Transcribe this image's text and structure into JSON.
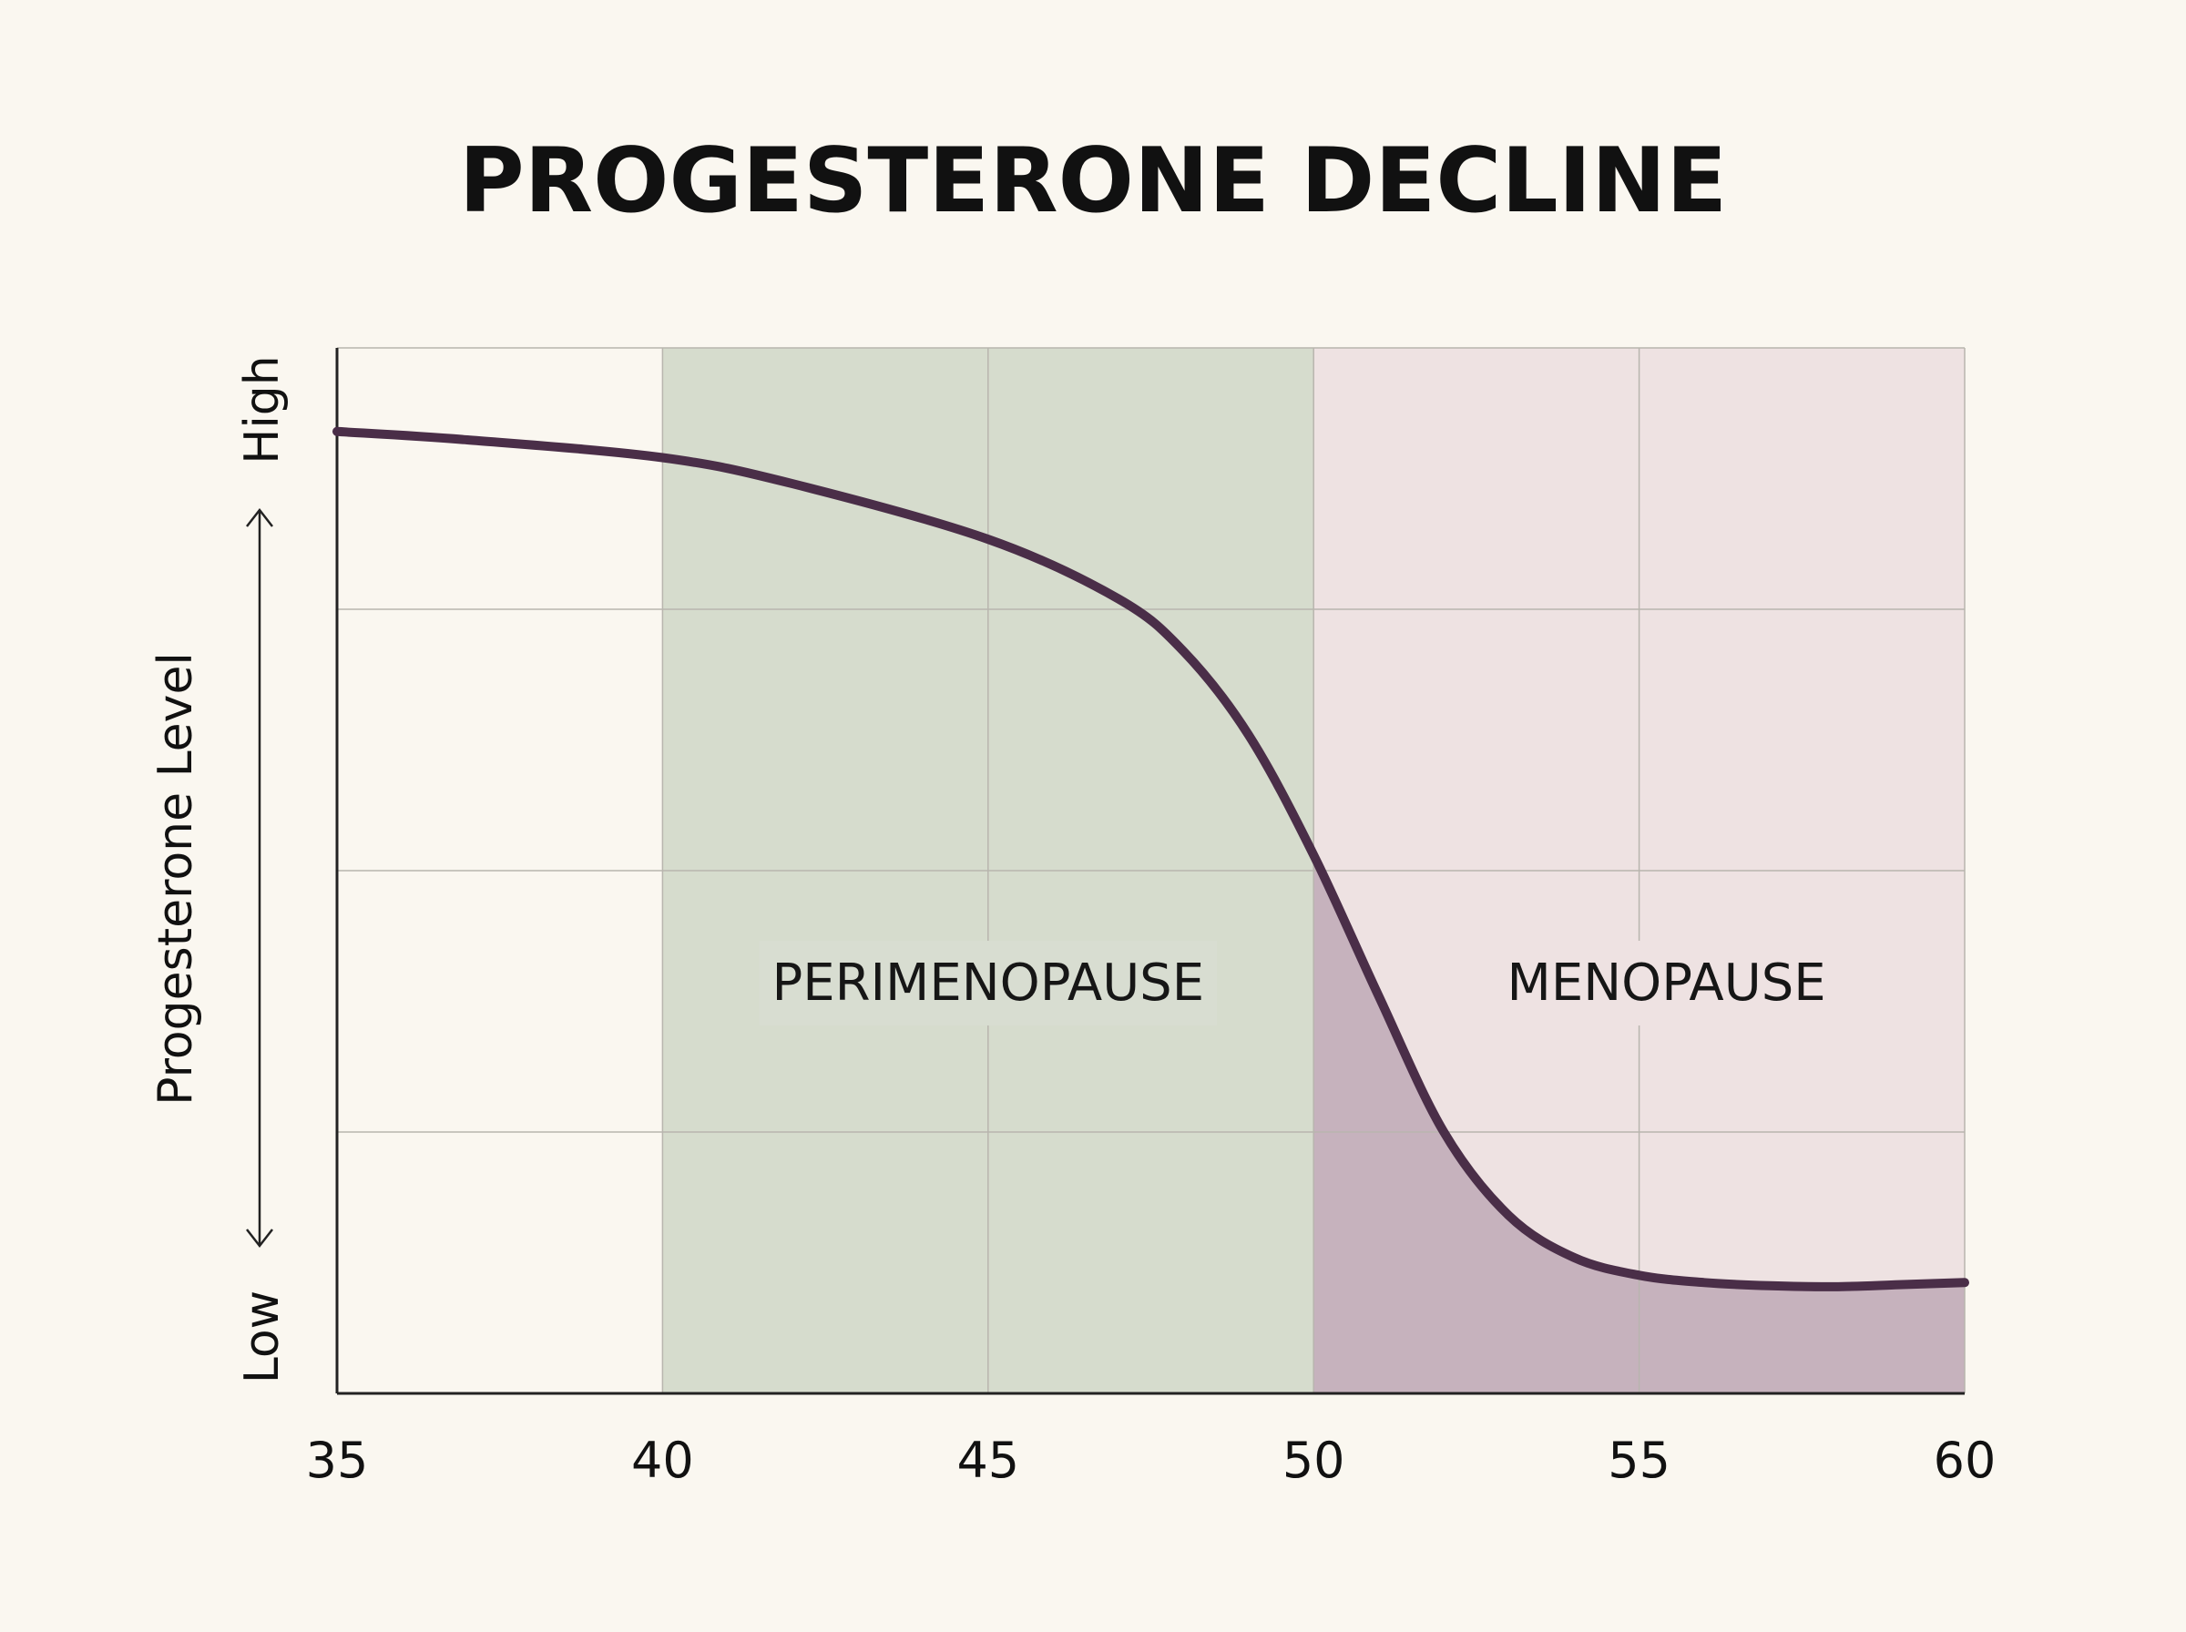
{
  "chart_data": {
    "type": "area",
    "title": "PROGESTERONE DECLINE",
    "xlabel": "",
    "ylabel": "Progesterone Level",
    "y_end_labels": {
      "high": "High",
      "low": "Low"
    },
    "x_ticks": [
      35,
      40,
      45,
      50,
      55,
      60
    ],
    "xlim": [
      35,
      60
    ],
    "ylim": [
      0,
      100
    ],
    "grid": true,
    "y_tick_labels_shown": false,
    "regions": [
      {
        "label": "PERIMENOPAUSE",
        "x_start": 40,
        "x_end": 50,
        "color": "#d6dccd",
        "under_curve_color": "#d6dccd"
      },
      {
        "label": "MENOPAUSE",
        "x_start": 50,
        "x_end": 60,
        "color": "#eee2e2",
        "under_curve_color": "#c6b2bd"
      }
    ],
    "series": [
      {
        "color": "#4a2e48",
        "points": [
          [
            35,
            92
          ],
          [
            37,
            91.2
          ],
          [
            40,
            89.5
          ],
          [
            42,
            87
          ],
          [
            45,
            81.7
          ],
          [
            47,
            76
          ],
          [
            48,
            71
          ],
          [
            49,
            63
          ],
          [
            50,
            51.5
          ],
          [
            51,
            38
          ],
          [
            52,
            25
          ],
          [
            53,
            17
          ],
          [
            54,
            13
          ],
          [
            55,
            11.3
          ],
          [
            56,
            10.6
          ],
          [
            57,
            10.3
          ],
          [
            58,
            10.2
          ],
          [
            59,
            10.4
          ],
          [
            60,
            10.6
          ]
        ]
      }
    ]
  }
}
